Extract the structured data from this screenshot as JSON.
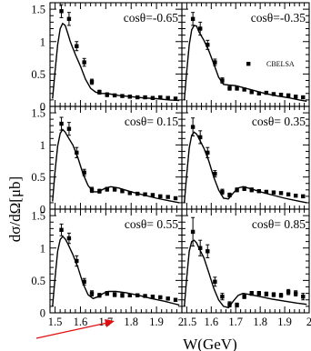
{
  "chart_data": {
    "type": "scatter",
    "xlabel": "W(GeV)",
    "ylabel": "dσ/dΩ[μb]",
    "xlim": [
      1.48,
      2.0
    ],
    "ylim": [
      0,
      1.6
    ],
    "x_ticks": [
      "1.5",
      "1.6",
      "1.7",
      "1.8",
      "1.9",
      "2"
    ],
    "y_ticks": [
      "0",
      "0.5",
      "1",
      "1.5"
    ],
    "legend": {
      "label": "CBELSA",
      "placement": "panel-2-right"
    },
    "panels": [
      {
        "label": "cosθ=-0.65",
        "data": [
          [
            1.525,
            1.47,
            0.1
          ],
          [
            1.555,
            1.35,
            0.1
          ],
          [
            1.585,
            0.93,
            0.07
          ],
          [
            1.615,
            0.68,
            0.06
          ],
          [
            1.645,
            0.38,
            0.04
          ],
          [
            1.675,
            0.22,
            0.03
          ],
          [
            1.705,
            0.18,
            0.03
          ],
          [
            1.735,
            0.17,
            0.02
          ],
          [
            1.765,
            0.16,
            0.02
          ],
          [
            1.795,
            0.15,
            0.02
          ],
          [
            1.825,
            0.14,
            0.02
          ],
          [
            1.855,
            0.14,
            0.02
          ],
          [
            1.885,
            0.13,
            0.02
          ],
          [
            1.915,
            0.14,
            0.02
          ],
          [
            1.945,
            0.13,
            0.02
          ],
          [
            1.975,
            0.12,
            0.02
          ]
        ],
        "curve": [
          [
            1.49,
            0.12
          ],
          [
            1.5,
            0.55
          ],
          [
            1.51,
            0.95
          ],
          [
            1.52,
            1.2
          ],
          [
            1.53,
            1.28
          ],
          [
            1.54,
            1.25
          ],
          [
            1.55,
            1.13
          ],
          [
            1.56,
            1.0
          ],
          [
            1.58,
            0.8
          ],
          [
            1.6,
            0.62
          ],
          [
            1.62,
            0.42
          ],
          [
            1.64,
            0.28
          ],
          [
            1.66,
            0.22
          ],
          [
            1.68,
            0.2
          ],
          [
            1.7,
            0.2
          ],
          [
            1.72,
            0.19
          ],
          [
            1.75,
            0.17
          ],
          [
            1.8,
            0.15
          ],
          [
            1.85,
            0.13
          ],
          [
            1.9,
            0.12
          ],
          [
            1.95,
            0.1
          ],
          [
            1.99,
            0.09
          ]
        ]
      },
      {
        "label": "cosθ=-0.35",
        "data": [
          [
            1.525,
            1.35,
            0.1
          ],
          [
            1.555,
            1.2,
            0.1
          ],
          [
            1.585,
            0.95,
            0.07
          ],
          [
            1.615,
            0.68,
            0.05
          ],
          [
            1.645,
            0.4,
            0.04
          ],
          [
            1.675,
            0.28,
            0.03
          ],
          [
            1.705,
            0.28,
            0.03
          ],
          [
            1.735,
            0.26,
            0.02
          ],
          [
            1.765,
            0.22,
            0.02
          ],
          [
            1.795,
            0.2,
            0.02
          ],
          [
            1.825,
            0.21,
            0.02
          ],
          [
            1.855,
            0.19,
            0.02
          ],
          [
            1.885,
            0.18,
            0.02
          ],
          [
            1.915,
            0.17,
            0.02
          ],
          [
            1.945,
            0.15,
            0.02
          ],
          [
            1.975,
            0.14,
            0.02
          ]
        ],
        "curve": [
          [
            1.49,
            0.1
          ],
          [
            1.5,
            0.55
          ],
          [
            1.51,
            0.95
          ],
          [
            1.52,
            1.18
          ],
          [
            1.53,
            1.25
          ],
          [
            1.54,
            1.24
          ],
          [
            1.55,
            1.15
          ],
          [
            1.57,
            1.02
          ],
          [
            1.59,
            0.86
          ],
          [
            1.61,
            0.66
          ],
          [
            1.63,
            0.45
          ],
          [
            1.65,
            0.34
          ],
          [
            1.67,
            0.33
          ],
          [
            1.7,
            0.32
          ],
          [
            1.73,
            0.29
          ],
          [
            1.77,
            0.25
          ],
          [
            1.82,
            0.2
          ],
          [
            1.87,
            0.16
          ],
          [
            1.92,
            0.13
          ],
          [
            1.96,
            0.1
          ],
          [
            1.99,
            0.08
          ]
        ]
      },
      {
        "label": "cosθ= 0.15",
        "data": [
          [
            1.525,
            1.33,
            0.1
          ],
          [
            1.555,
            1.25,
            0.1
          ],
          [
            1.585,
            0.88,
            0.08
          ],
          [
            1.615,
            0.57,
            0.05
          ],
          [
            1.645,
            0.3,
            0.04
          ],
          [
            1.675,
            0.28,
            0.03
          ],
          [
            1.705,
            0.31,
            0.03
          ],
          [
            1.735,
            0.31,
            0.03
          ],
          [
            1.765,
            0.28,
            0.02
          ],
          [
            1.795,
            0.25,
            0.02
          ],
          [
            1.825,
            0.24,
            0.02
          ],
          [
            1.855,
            0.23,
            0.02
          ],
          [
            1.885,
            0.22,
            0.02
          ],
          [
            1.915,
            0.2,
            0.02
          ],
          [
            1.945,
            0.19,
            0.02
          ],
          [
            1.975,
            0.17,
            0.02
          ]
        ],
        "curve": [
          [
            1.49,
            0.12
          ],
          [
            1.5,
            0.6
          ],
          [
            1.51,
            0.98
          ],
          [
            1.52,
            1.18
          ],
          [
            1.53,
            1.24
          ],
          [
            1.54,
            1.2
          ],
          [
            1.55,
            1.13
          ],
          [
            1.57,
            1.0
          ],
          [
            1.59,
            0.8
          ],
          [
            1.61,
            0.55
          ],
          [
            1.63,
            0.37
          ],
          [
            1.65,
            0.27
          ],
          [
            1.67,
            0.27
          ],
          [
            1.7,
            0.33
          ],
          [
            1.72,
            0.35
          ],
          [
            1.75,
            0.33
          ],
          [
            1.8,
            0.27
          ],
          [
            1.85,
            0.22
          ],
          [
            1.9,
            0.17
          ],
          [
            1.95,
            0.13
          ],
          [
            1.99,
            0.1
          ]
        ]
      },
      {
        "label": "cosθ= 0.35",
        "data": [
          [
            1.525,
            1.28,
            0.14
          ],
          [
            1.555,
            1.12,
            0.1
          ],
          [
            1.585,
            0.88,
            0.08
          ],
          [
            1.615,
            0.55,
            0.05
          ],
          [
            1.645,
            0.27,
            0.04
          ],
          [
            1.675,
            0.22,
            0.03
          ],
          [
            1.705,
            0.3,
            0.03
          ],
          [
            1.735,
            0.32,
            0.03
          ],
          [
            1.765,
            0.3,
            0.03
          ],
          [
            1.795,
            0.28,
            0.02
          ],
          [
            1.825,
            0.27,
            0.02
          ],
          [
            1.855,
            0.26,
            0.02
          ],
          [
            1.885,
            0.25,
            0.02
          ],
          [
            1.915,
            0.23,
            0.02
          ],
          [
            1.945,
            0.21,
            0.02
          ],
          [
            1.975,
            0.2,
            0.02
          ]
        ],
        "curve": [
          [
            1.49,
            0.1
          ],
          [
            1.5,
            0.55
          ],
          [
            1.51,
            0.95
          ],
          [
            1.52,
            1.15
          ],
          [
            1.53,
            1.2
          ],
          [
            1.54,
            1.17
          ],
          [
            1.55,
            1.1
          ],
          [
            1.57,
            0.95
          ],
          [
            1.59,
            0.75
          ],
          [
            1.61,
            0.5
          ],
          [
            1.63,
            0.3
          ],
          [
            1.65,
            0.17
          ],
          [
            1.67,
            0.16
          ],
          [
            1.69,
            0.25
          ],
          [
            1.71,
            0.33
          ],
          [
            1.73,
            0.35
          ],
          [
            1.76,
            0.32
          ],
          [
            1.8,
            0.27
          ],
          [
            1.85,
            0.22
          ],
          [
            1.9,
            0.17
          ],
          [
            1.95,
            0.13
          ],
          [
            1.99,
            0.1
          ]
        ]
      },
      {
        "label": "cosθ= 0.55",
        "data": [
          [
            1.525,
            1.28,
            0.09
          ],
          [
            1.555,
            1.15,
            0.08
          ],
          [
            1.585,
            0.8,
            0.08
          ],
          [
            1.615,
            0.48,
            0.05
          ],
          [
            1.645,
            0.3,
            0.04
          ],
          [
            1.675,
            0.27,
            0.03
          ],
          [
            1.705,
            0.3,
            0.03
          ],
          [
            1.735,
            0.28,
            0.03
          ],
          [
            1.765,
            0.27,
            0.03
          ],
          [
            1.795,
            0.27,
            0.02
          ],
          [
            1.825,
            0.27,
            0.02
          ],
          [
            1.855,
            0.26,
            0.02
          ],
          [
            1.885,
            0.25,
            0.02
          ],
          [
            1.915,
            0.24,
            0.02
          ],
          [
            1.945,
            0.22,
            0.02
          ],
          [
            1.975,
            0.2,
            0.02
          ]
        ],
        "curve": [
          [
            1.49,
            0.1
          ],
          [
            1.5,
            0.55
          ],
          [
            1.51,
            0.95
          ],
          [
            1.52,
            1.13
          ],
          [
            1.53,
            1.18
          ],
          [
            1.54,
            1.14
          ],
          [
            1.55,
            1.07
          ],
          [
            1.57,
            0.9
          ],
          [
            1.59,
            0.7
          ],
          [
            1.61,
            0.45
          ],
          [
            1.63,
            0.28
          ],
          [
            1.65,
            0.22
          ],
          [
            1.67,
            0.25
          ],
          [
            1.69,
            0.3
          ],
          [
            1.71,
            0.33
          ],
          [
            1.74,
            0.33
          ],
          [
            1.78,
            0.31
          ],
          [
            1.83,
            0.27
          ],
          [
            1.88,
            0.22
          ],
          [
            1.93,
            0.18
          ],
          [
            1.97,
            0.14
          ],
          [
            1.99,
            0.12
          ]
        ]
      },
      {
        "label": "cosθ= 0.85",
        "data": [
          [
            1.525,
            1.25,
            0.22
          ],
          [
            1.555,
            1.0,
            0.12
          ],
          [
            1.585,
            0.95,
            0.1
          ],
          [
            1.615,
            0.48,
            0.07
          ],
          [
            1.645,
            0.25,
            0.05
          ],
          [
            1.675,
            0.13,
            0.04
          ],
          [
            1.705,
            0.12,
            0.03
          ],
          [
            1.735,
            0.25,
            0.03
          ],
          [
            1.765,
            0.3,
            0.03
          ],
          [
            1.795,
            0.3,
            0.03
          ],
          [
            1.825,
            0.29,
            0.03
          ],
          [
            1.855,
            0.28,
            0.03
          ],
          [
            1.885,
            0.27,
            0.03
          ],
          [
            1.915,
            0.32,
            0.04
          ],
          [
            1.945,
            0.3,
            0.04
          ],
          [
            1.975,
            0.25,
            0.05
          ]
        ],
        "curve": [
          [
            1.49,
            0.1
          ],
          [
            1.5,
            0.55
          ],
          [
            1.51,
            0.95
          ],
          [
            1.52,
            1.1
          ],
          [
            1.53,
            1.12
          ],
          [
            1.54,
            1.08
          ],
          [
            1.55,
            1.0
          ],
          [
            1.57,
            0.85
          ],
          [
            1.59,
            0.62
          ],
          [
            1.61,
            0.38
          ],
          [
            1.63,
            0.2
          ],
          [
            1.65,
            0.1
          ],
          [
            1.67,
            0.08
          ],
          [
            1.69,
            0.18
          ],
          [
            1.71,
            0.27
          ],
          [
            1.73,
            0.3
          ],
          [
            1.76,
            0.28
          ],
          [
            1.8,
            0.25
          ],
          [
            1.85,
            0.21
          ],
          [
            1.9,
            0.18
          ],
          [
            1.95,
            0.15
          ],
          [
            1.99,
            0.13
          ]
        ]
      }
    ]
  },
  "colors": {
    "axis": "#000000",
    "marker": "#000000",
    "curve": "#000000",
    "arrow": "#e01010"
  }
}
